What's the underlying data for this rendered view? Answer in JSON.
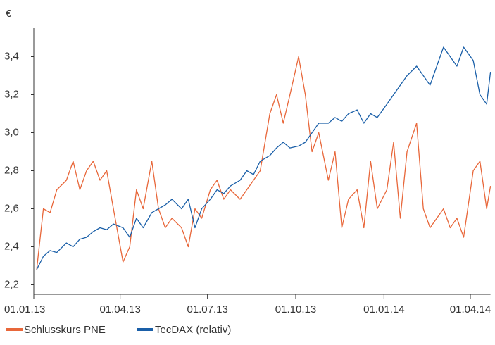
{
  "chart_data": {
    "type": "line",
    "ylabel": "€",
    "x": [
      "2013-01-04",
      "2013-01-11",
      "2013-01-18",
      "2013-01-25",
      "2013-02-04",
      "2013-02-11",
      "2013-02-18",
      "2013-02-25",
      "2013-03-04",
      "2013-03-11",
      "2013-03-18",
      "2013-03-25",
      "2013-04-04",
      "2013-04-11",
      "2013-04-18",
      "2013-04-25",
      "2013-05-04",
      "2013-05-11",
      "2013-05-18",
      "2013-05-25",
      "2013-06-04",
      "2013-06-11",
      "2013-06-18",
      "2013-06-25",
      "2013-07-04",
      "2013-07-11",
      "2013-07-18",
      "2013-07-25",
      "2013-08-04",
      "2013-08-11",
      "2013-08-18",
      "2013-08-25",
      "2013-09-04",
      "2013-09-11",
      "2013-09-18",
      "2013-09-25",
      "2013-10-04",
      "2013-10-11",
      "2013-10-18",
      "2013-10-25",
      "2013-11-04",
      "2013-11-11",
      "2013-11-18",
      "2013-11-25",
      "2013-12-04",
      "2013-12-11",
      "2013-12-18",
      "2013-12-25",
      "2014-01-04",
      "2014-01-11",
      "2014-01-18",
      "2014-01-25",
      "2014-02-04",
      "2014-02-11",
      "2014-02-18",
      "2014-02-25",
      "2014-03-04",
      "2014-03-11",
      "2014-03-18",
      "2014-03-25",
      "2014-04-04",
      "2014-04-11",
      "2014-04-18",
      "2014-04-22"
    ],
    "series": [
      {
        "name": "Schlusskurs PNE",
        "color": "#e8673a",
        "values": [
          2.28,
          2.6,
          2.58,
          2.7,
          2.75,
          2.85,
          2.7,
          2.8,
          2.85,
          2.75,
          2.8,
          2.6,
          2.32,
          2.4,
          2.7,
          2.6,
          2.85,
          2.6,
          2.5,
          2.55,
          2.5,
          2.4,
          2.6,
          2.55,
          2.7,
          2.75,
          2.65,
          2.7,
          2.65,
          2.7,
          2.75,
          2.8,
          3.1,
          3.2,
          3.05,
          3.2,
          3.4,
          3.2,
          2.9,
          3.0,
          2.75,
          2.9,
          2.5,
          2.65,
          2.7,
          2.5,
          2.85,
          2.6,
          2.7,
          2.95,
          2.55,
          2.9,
          3.05,
          2.6,
          2.5,
          2.55,
          2.6,
          2.5,
          2.55,
          2.45,
          2.8,
          2.85,
          2.6,
          2.72
        ]
      },
      {
        "name": "TecDAX (relativ)",
        "color": "#1a5fa8",
        "values": [
          2.28,
          2.35,
          2.38,
          2.37,
          2.42,
          2.4,
          2.44,
          2.45,
          2.48,
          2.5,
          2.49,
          2.52,
          2.5,
          2.45,
          2.55,
          2.5,
          2.58,
          2.6,
          2.62,
          2.65,
          2.6,
          2.65,
          2.5,
          2.6,
          2.65,
          2.7,
          2.68,
          2.72,
          2.75,
          2.8,
          2.78,
          2.85,
          2.88,
          2.92,
          2.95,
          2.92,
          2.93,
          2.95,
          3.0,
          3.05,
          3.05,
          3.08,
          3.06,
          3.1,
          3.12,
          3.05,
          3.1,
          3.08,
          3.15,
          3.2,
          3.25,
          3.3,
          3.35,
          3.3,
          3.25,
          3.35,
          3.45,
          3.4,
          3.35,
          3.45,
          3.38,
          3.2,
          3.15,
          3.32
        ]
      }
    ],
    "xlim": [
      "2013-01-01",
      "2014-04-22"
    ],
    "xticks": [
      {
        "value": "2013-01-01",
        "label": "01.01.13"
      },
      {
        "value": "2013-04-01",
        "label": "01.04.13"
      },
      {
        "value": "2013-07-01",
        "label": "01.07.13"
      },
      {
        "value": "2013-10-01",
        "label": "01.10.13"
      },
      {
        "value": "2014-01-01",
        "label": "01.01.14"
      },
      {
        "value": "2014-04-01",
        "label": "01.04.14"
      }
    ],
    "ylim": [
      2.15,
      3.55
    ],
    "yticks": [
      {
        "value": 2.2,
        "label": "2,2"
      },
      {
        "value": 2.4,
        "label": "2,4"
      },
      {
        "value": 2.6,
        "label": "2,6"
      },
      {
        "value": 2.8,
        "label": "2,8"
      },
      {
        "value": 3.0,
        "label": "3,0"
      },
      {
        "value": 3.2,
        "label": "3,2"
      },
      {
        "value": 3.4,
        "label": "3,4"
      }
    ],
    "legend": "bottom-left"
  }
}
